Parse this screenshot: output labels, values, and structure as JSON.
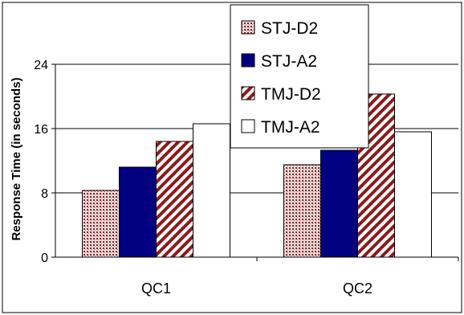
{
  "chart_data": {
    "type": "bar",
    "ylabel": "Response Time (in seconds)",
    "ylim": [
      0,
      24
    ],
    "yticks": [
      "0",
      "8",
      "16",
      "24"
    ],
    "categories": [
      "QC1",
      "QC2"
    ],
    "grid": true,
    "legend_position": "top-center",
    "series": [
      {
        "name": "STJ-D2",
        "values": [
          8.3,
          11.5
        ],
        "fill": "dots",
        "color": "#8b1a1a"
      },
      {
        "name": "STJ-A2",
        "values": [
          11.2,
          13.3
        ],
        "fill": "solid",
        "color": "#000080"
      },
      {
        "name": "TMJ-D2",
        "values": [
          14.4,
          20.3
        ],
        "fill": "diagonal-stripes",
        "color": "#8b1a1a"
      },
      {
        "name": "TMJ-A2",
        "values": [
          16.6,
          15.6
        ],
        "fill": "white",
        "color": "#ffffff"
      }
    ]
  }
}
